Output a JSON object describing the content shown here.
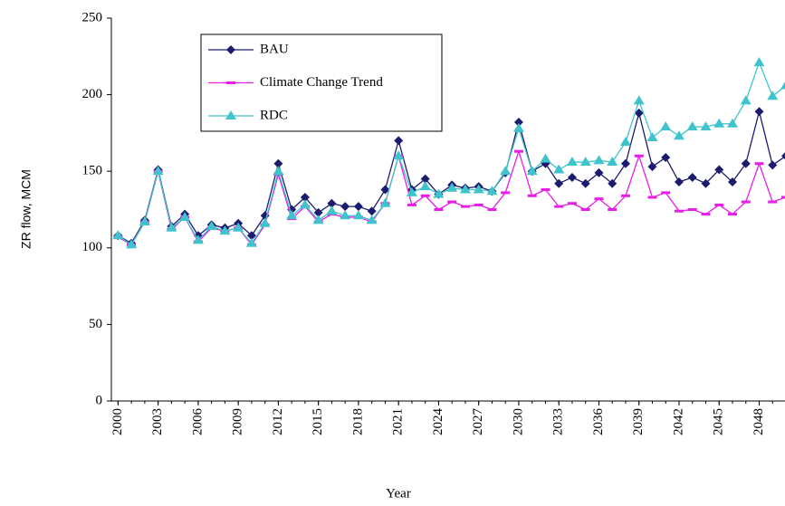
{
  "chart_data": {
    "type": "line",
    "x_label": "Year",
    "y_label": "ZR flow, MCM",
    "x": [
      2000,
      2001,
      2002,
      2003,
      2004,
      2005,
      2006,
      2007,
      2008,
      2009,
      2010,
      2011,
      2012,
      2013,
      2014,
      2015,
      2016,
      2017,
      2018,
      2019,
      2020,
      2021,
      2022,
      2023,
      2024,
      2025,
      2026,
      2027,
      2028,
      2029,
      2030,
      2031,
      2032,
      2033,
      2034,
      2035,
      2036,
      2037,
      2038,
      2039,
      2040,
      2041,
      2042,
      2043,
      2044,
      2045,
      2046,
      2047,
      2048,
      2049,
      2050
    ],
    "series": [
      {
        "name": "BAU",
        "color": "#1c1c6e",
        "marker": "diamond",
        "values": [
          108,
          103,
          118,
          151,
          114,
          122,
          108,
          115,
          113,
          116,
          108,
          121,
          155,
          125,
          133,
          123,
          129,
          127,
          127,
          124,
          138,
          170,
          138,
          145,
          135,
          141,
          139,
          140,
          137,
          149,
          182,
          150,
          155,
          142,
          146,
          142,
          149,
          142,
          155,
          188,
          153,
          159,
          143,
          146,
          142,
          151,
          143,
          155,
          189,
          154,
          160
        ]
      },
      {
        "name": "Climate Change Trend",
        "color": "#e61ee6",
        "marker": "dash",
        "values": [
          107,
          102,
          117,
          150,
          112,
          120,
          104,
          113,
          111,
          113,
          102,
          115,
          148,
          119,
          127,
          117,
          122,
          120,
          120,
          117,
          129,
          160,
          128,
          134,
          125,
          130,
          127,
          128,
          125,
          136,
          163,
          134,
          138,
          127,
          129,
          125,
          132,
          125,
          134,
          160,
          133,
          136,
          124,
          125,
          122,
          128,
          122,
          130,
          155,
          130,
          133
        ]
      },
      {
        "name": "RDC",
        "color": "#40c4cc",
        "marker": "triangle",
        "values": [
          108,
          102,
          117,
          150,
          113,
          120,
          105,
          114,
          111,
          113,
          103,
          116,
          150,
          121,
          128,
          118,
          124,
          121,
          121,
          118,
          129,
          160,
          136,
          140,
          135,
          139,
          138,
          138,
          137,
          150,
          178,
          150,
          158,
          151,
          156,
          156,
          157,
          156,
          169,
          196,
          172,
          179,
          173,
          179,
          179,
          181,
          181,
          196,
          221,
          199,
          206
        ]
      }
    ],
    "xlim": [
      1999.5,
      2050
    ],
    "xticks": [
      2000,
      2003,
      2006,
      2009,
      2012,
      2015,
      2018,
      2021,
      2024,
      2027,
      2030,
      2033,
      2036,
      2039,
      2042,
      2045,
      2048
    ],
    "ylim": [
      0,
      250
    ],
    "yticks": [
      0,
      50,
      100,
      150,
      200,
      250
    ],
    "grid": false,
    "legend": "upper left"
  }
}
